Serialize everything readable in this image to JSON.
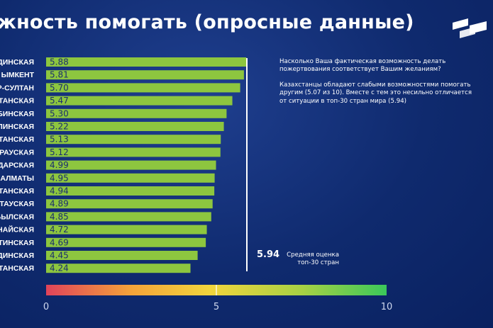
{
  "title": "жность помогать (опросные данные)",
  "info": {
    "question": "Насколько Ваша фактическая возможность делать пожертвования соответствует Вашим желаниям?",
    "finding": "Казахстанцы обладают слабыми возможностями помогать другим (5.07 из 10). Вместе с тем это несильно отличается от ситуации в топ-30 стран мира (5.94)"
  },
  "benchmark": {
    "value_label": "5.94",
    "text_line1": "Средняя оценка",
    "text_line2": "топ-30 стран"
  },
  "colors": {
    "bar": "#8dc63f",
    "background": "#0f2a6e",
    "gradient": [
      "#e0435a",
      "#f4a33a",
      "#f2d53c",
      "#a8d144",
      "#3bc85a"
    ]
  },
  "chart_data": {
    "type": "bar",
    "orientation": "horizontal",
    "categories": [
      "ДИНСКАЯ",
      "ЫМКЕНТ",
      "Р-СУЛТАН",
      "СТАНСКАЯ",
      "БИНСКАЯ",
      "ЛИНСКАЯ",
      "СТАНСКАЯ",
      "РАУСКАЯ",
      "ДАРСКАЯ",
      "АЛМАТЫ",
      "СТАНСКАЯ",
      "СТАУСКАЯ",
      "БЫЛСКАЯ",
      "НАЙСКАЯ",
      "ТИНСКАЯ",
      "ДИНСКАЯ",
      "СТАНСКАЯ"
    ],
    "values": [
      5.88,
      5.81,
      5.7,
      5.47,
      5.3,
      5.22,
      5.13,
      5.12,
      4.99,
      4.95,
      4.94,
      4.89,
      4.85,
      4.72,
      4.69,
      4.45,
      4.24
    ],
    "value_labels": [
      "5.88",
      "5.81",
      "5.70",
      "5.47",
      "5.30",
      "5.22",
      "5.13",
      "5.12",
      "4.99",
      "4.95",
      "4.94",
      "4.89",
      "4.85",
      "4.72",
      "4.69",
      "4.45",
      "4.24"
    ],
    "xlim": [
      0,
      10
    ],
    "xticks": [
      0,
      5,
      10
    ],
    "xtick_labels": [
      "0",
      "5",
      "10"
    ],
    "reference_line": 5.94,
    "grid": false
  }
}
